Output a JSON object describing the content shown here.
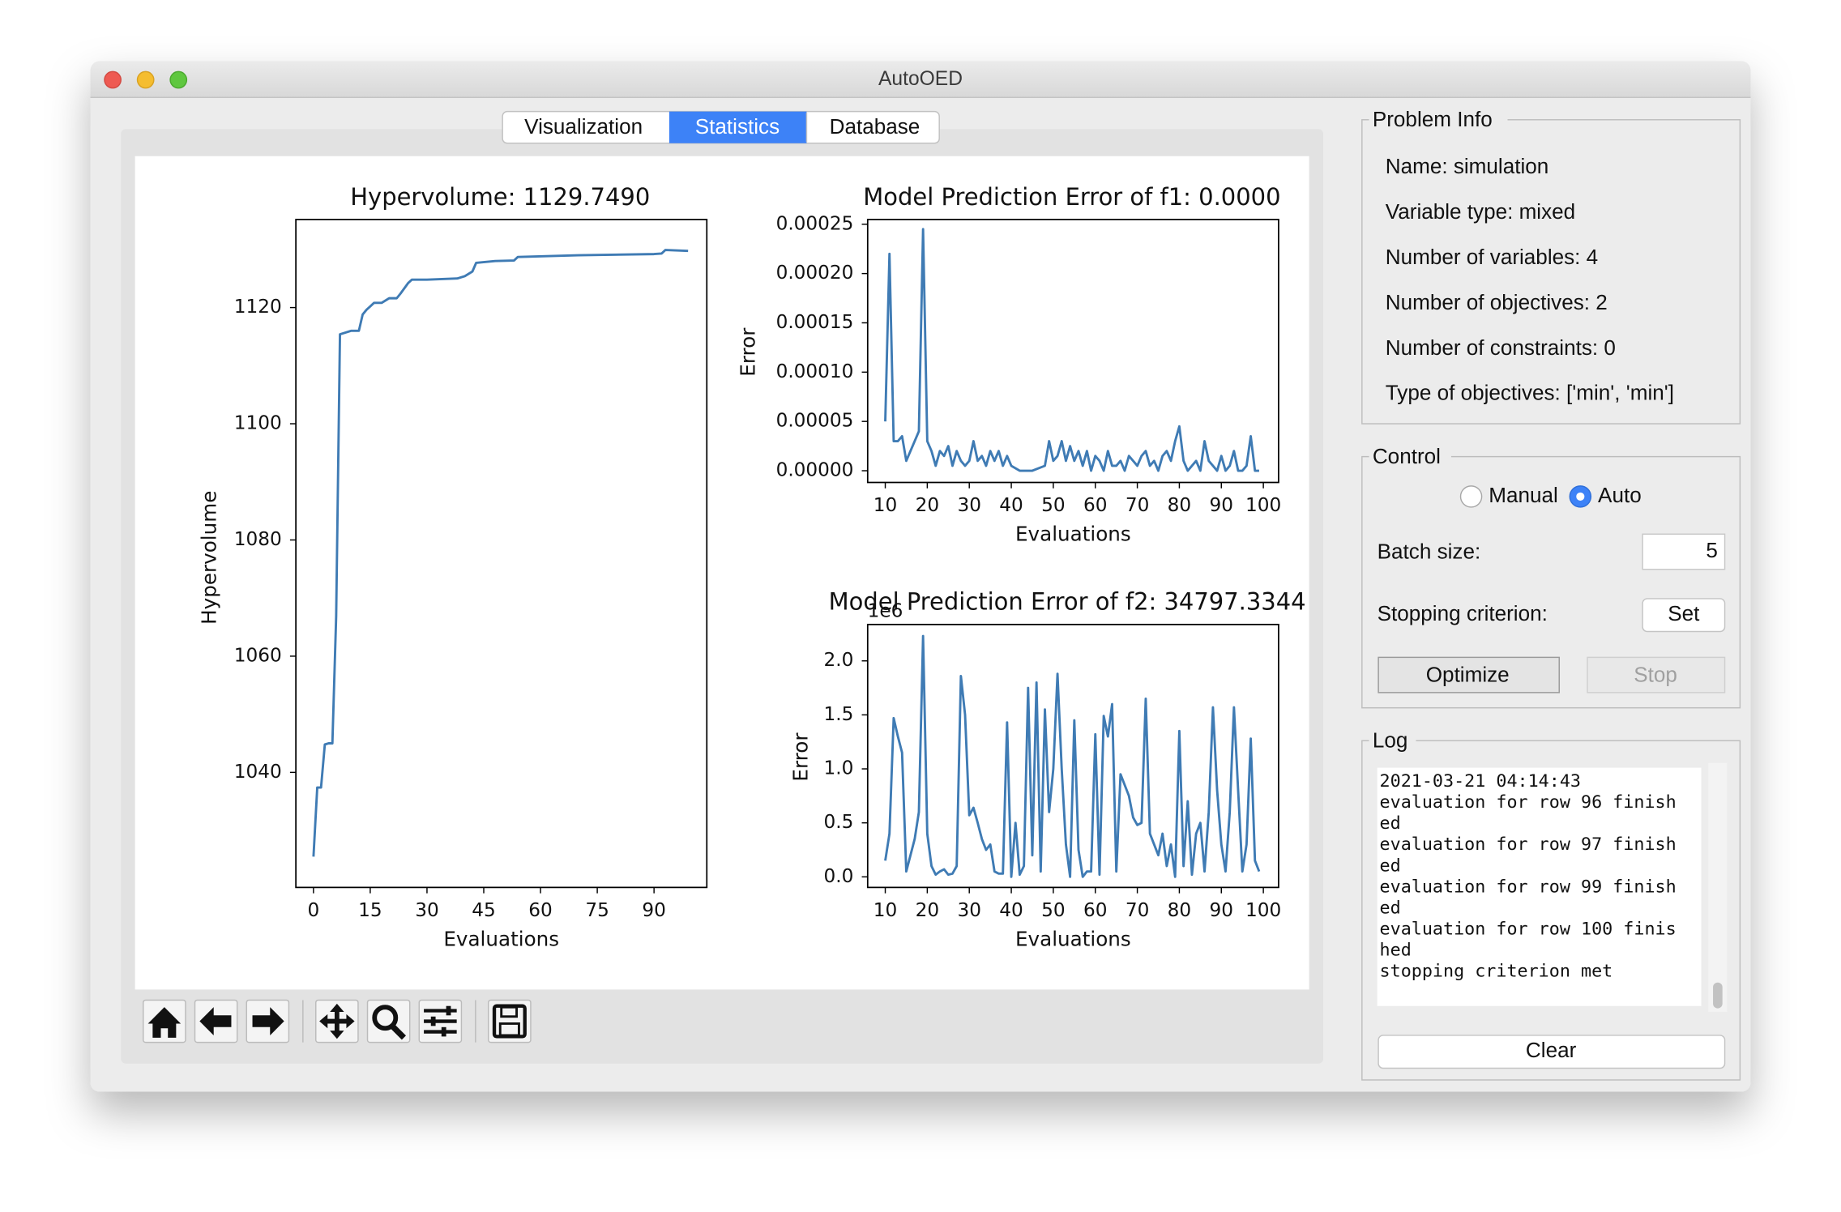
{
  "window": {
    "title": "AutoOED"
  },
  "tabs": [
    "Visualization",
    "Statistics",
    "Database"
  ],
  "chart_data": [
    {
      "type": "line",
      "title": "Hypervolume: 1129.7490",
      "x_label": "Evaluations",
      "y_label": "Hypervolume",
      "color": "#3f7bb4",
      "x": [
        0,
        1,
        2,
        3,
        4,
        5,
        6,
        7,
        10,
        12,
        13,
        14,
        15,
        16,
        18,
        20,
        22,
        23,
        25,
        26,
        30,
        38,
        40,
        42,
        43,
        48,
        53,
        54,
        70,
        90,
        92,
        93,
        99
      ],
      "values": [
        1025.5,
        1037.4,
        1037.4,
        1044.8,
        1045,
        1045,
        1066.9,
        1115.4,
        1116,
        1116,
        1118.8,
        1119.6,
        1120.2,
        1120.8,
        1120.8,
        1121.6,
        1121.6,
        1122.4,
        1124.2,
        1124.8,
        1124.8,
        1125,
        1125.4,
        1126.2,
        1127.7,
        1128,
        1128.1,
        1128.7,
        1129,
        1129.2,
        1129.3,
        1129.9,
        1129.75
      ],
      "xlim": [
        -4.65,
        103.95
      ],
      "ylim": [
        1020.2,
        1135.15
      ],
      "xticks": [
        0,
        15,
        30,
        45,
        60,
        75,
        90
      ],
      "yticks": [
        1040,
        1060,
        1080,
        1100,
        1120
      ]
    },
    {
      "type": "line",
      "title": "Model Prediction Error of f1: 0.0000",
      "x_label": "Evaluations",
      "y_label": "Error",
      "color": "#3f7bb4",
      "x": [
        10,
        11,
        12,
        13,
        14,
        15,
        16,
        17,
        18,
        19,
        20,
        21,
        22,
        23,
        24,
        25,
        26,
        27,
        28,
        29,
        30,
        31,
        32,
        33,
        34,
        35,
        36,
        37,
        38,
        39,
        40,
        42,
        45,
        48,
        49,
        50,
        51,
        52,
        53,
        54,
        55,
        56,
        57,
        58,
        59,
        60,
        61,
        62,
        63,
        64,
        65,
        66,
        67,
        68,
        69,
        70,
        71,
        72,
        73,
        74,
        75,
        76,
        77,
        78,
        79,
        80,
        81,
        82,
        83,
        84,
        85,
        86,
        87,
        88,
        89,
        90,
        91,
        92,
        93,
        94,
        95,
        96,
        97,
        98,
        99
      ],
      "values": [
        5e-05,
        0.00022,
        3e-05,
        3e-05,
        3.5e-05,
        1e-05,
        2e-05,
        3e-05,
        4e-05,
        0.000245,
        3e-05,
        2e-05,
        5e-06,
        2e-05,
        1.5e-05,
        2.5e-05,
        5e-06,
        2e-05,
        1e-05,
        5e-06,
        1e-05,
        3e-05,
        1e-05,
        1.5e-05,
        5e-06,
        2e-05,
        1e-05,
        2e-05,
        5e-06,
        1.5e-05,
        5e-06,
        0,
        0,
        5e-06,
        3e-05,
        1e-05,
        1.5e-05,
        3e-05,
        1e-05,
        2.5e-05,
        1e-05,
        2e-05,
        5e-06,
        2e-05,
        0,
        1.5e-05,
        1e-05,
        0,
        2e-05,
        5e-06,
        5e-06,
        1e-05,
        0,
        1.5e-05,
        1e-05,
        5e-06,
        1.5e-05,
        2e-05,
        5e-06,
        1e-05,
        0,
        1.5e-05,
        2e-05,
        1e-05,
        3e-05,
        4.5e-05,
        1e-05,
        0,
        5e-06,
        1e-05,
        0,
        3e-05,
        1e-05,
        5e-06,
        0,
        1.5e-05,
        0,
        5e-06,
        2e-05,
        0,
        0,
        5e-06,
        3.5e-05,
        0,
        0
      ],
      "xlim": [
        5.81,
        103.63
      ],
      "ylim": [
        -1.19e-05,
        0.0002548
      ],
      "xticks": [
        10,
        20,
        30,
        40,
        50,
        60,
        70,
        80,
        90,
        100
      ],
      "yticks": [
        {
          "value": 0,
          "label": "0.00000"
        },
        {
          "value": 5e-05,
          "label": "0.00005"
        },
        {
          "value": 0.0001,
          "label": "0.00010"
        },
        {
          "value": 0.00015,
          "label": "0.00015"
        },
        {
          "value": 0.0002,
          "label": "0.00020"
        },
        {
          "value": 0.00025,
          "label": "0.00025"
        }
      ]
    },
    {
      "type": "line",
      "title": "Model Prediction Error of f2: 34797.3344",
      "x_label": "Evaluations",
      "y_label": "Error",
      "y_offset_label": "1e6",
      "color": "#3f7bb4",
      "x": [
        10,
        11,
        12,
        13,
        14,
        15,
        16,
        17,
        18,
        19,
        20,
        21,
        22,
        23,
        24,
        25,
        26,
        27,
        28,
        29,
        30,
        31,
        32,
        33,
        34,
        35,
        36,
        37,
        38,
        39,
        40,
        41,
        42,
        43,
        44,
        45,
        46,
        47,
        48,
        49,
        50,
        51,
        52,
        53,
        54,
        55,
        56,
        57,
        58,
        59,
        60,
        61,
        62,
        63,
        64,
        65,
        66,
        67,
        68,
        69,
        70,
        71,
        72,
        73,
        74,
        75,
        76,
        77,
        78,
        79,
        80,
        81,
        82,
        83,
        84,
        85,
        86,
        87,
        88,
        89,
        90,
        91,
        92,
        93,
        94,
        95,
        96,
        97,
        98,
        99
      ],
      "values": [
        0.15,
        0.4,
        1.47,
        1.3,
        1.15,
        0.05,
        0.2,
        0.35,
        0.6,
        2.23,
        0.4,
        0.1,
        0.02,
        0.05,
        0.07,
        0.02,
        0.03,
        0.1,
        1.86,
        1.5,
        0.57,
        0.64,
        0.5,
        0.35,
        0.25,
        0.3,
        0.05,
        0.03,
        0.03,
        1.43,
        0,
        0.5,
        0.02,
        0.1,
        1.75,
        0.2,
        1.8,
        0.05,
        1.55,
        0.6,
        1.0,
        1.88,
        1.0,
        0.3,
        0,
        1.45,
        0.25,
        0,
        0.05,
        0.05,
        1.32,
        0.02,
        1.49,
        1.3,
        1.6,
        0.05,
        0.95,
        0.85,
        0.75,
        0.55,
        0.48,
        0.5,
        1.65,
        0.4,
        0.3,
        0.2,
        0.4,
        0.1,
        0.3,
        0,
        1.35,
        0.1,
        0.7,
        0.02,
        0.4,
        0.5,
        0.05,
        0.6,
        1.57,
        0.8,
        0.3,
        0.05,
        0.6,
        1.57,
        0.8,
        0.05,
        0.3,
        1.28,
        0.15,
        0.05
      ],
      "xlim": [
        5.81,
        103.63
      ],
      "ylim": [
        -0.098,
        2.337
      ],
      "xticks": [
        10,
        20,
        30,
        40,
        50,
        60,
        70,
        80,
        90,
        100
      ],
      "yticks": [
        {
          "value": 0,
          "label": "0.0"
        },
        {
          "value": 0.5,
          "label": "0.5"
        },
        {
          "value": 1,
          "label": "1.0"
        },
        {
          "value": 1.5,
          "label": "1.5"
        },
        {
          "value": 2,
          "label": "2.0"
        }
      ]
    }
  ],
  "problem_info": {
    "title": "Problem Info",
    "lines": [
      "Name: simulation",
      "Variable type: mixed",
      "Number of variables: 4",
      "Number of objectives: 2",
      "Number of constraints: 0",
      "Type of objectives: ['min', 'min']"
    ]
  },
  "control": {
    "title": "Control",
    "modes": [
      "Manual",
      "Auto"
    ],
    "batch_size_label": "Batch size:",
    "batch_size": 5,
    "stopping_label": "Stopping criterion:",
    "set": "Set",
    "optimize": "Optimize",
    "stop": "Stop"
  },
  "log": {
    "title": "Log",
    "lines": [
      "2021-03-21 04:14:43",
      "evaluation for row 96 finish",
      "ed",
      "evaluation for row 97 finish",
      "ed",
      "evaluation for row 99 finish",
      "ed",
      "evaluation for row 100 finis",
      "hed",
      "stopping criterion met"
    ],
    "clear": "Clear"
  }
}
